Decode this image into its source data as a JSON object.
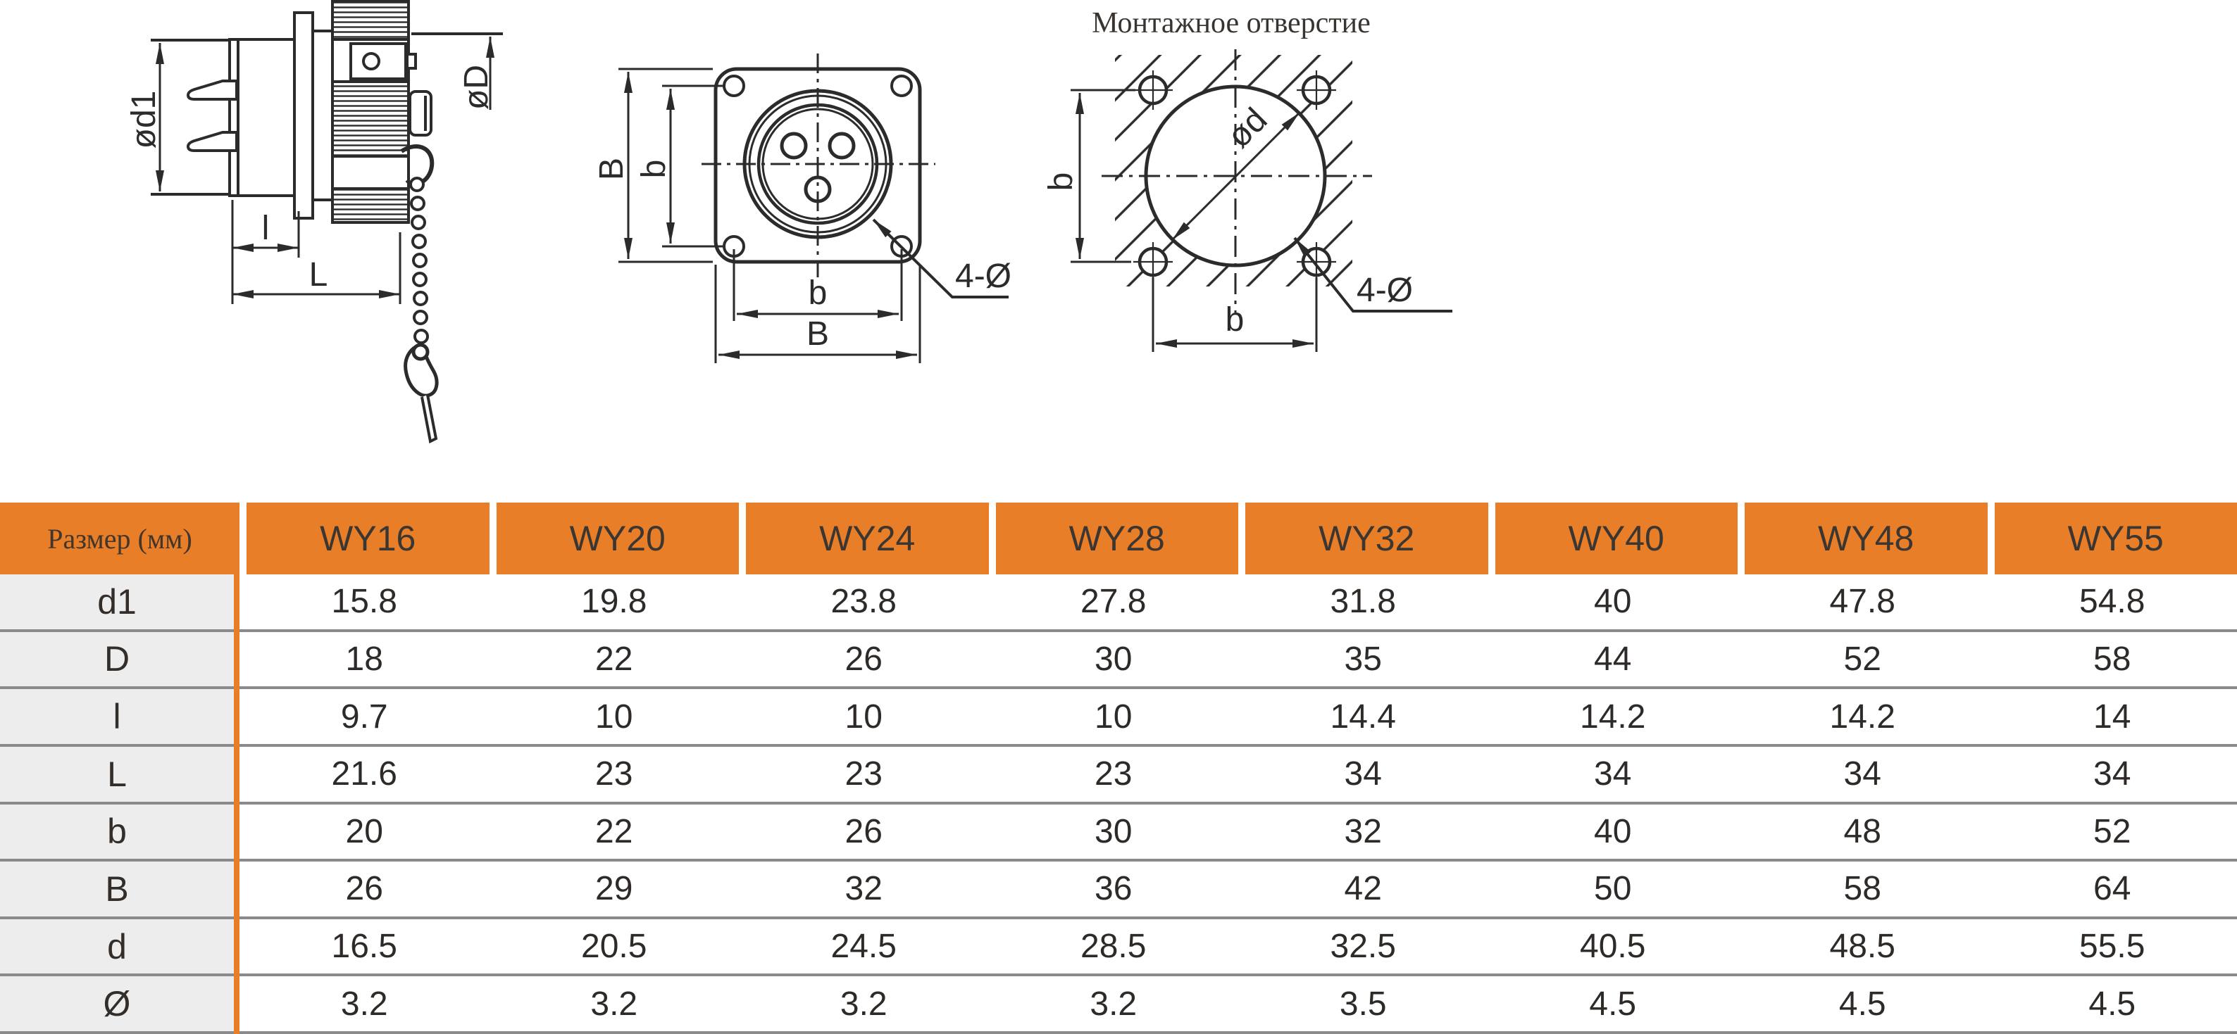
{
  "colors": {
    "accent": "#E97E28",
    "row_bg": "#EDEDED",
    "grid_line": "#8A8A8A",
    "ink": "#2E2A27",
    "draw": "#2B2B2B"
  },
  "drawings": {
    "side_view": {
      "labels": {
        "od1": "ød1",
        "oD": "øD",
        "l": "l",
        "L": "L"
      }
    },
    "front_view": {
      "labels": {
        "B_left": "B",
        "b_left": "b",
        "b_bottom": "b",
        "B_bottom": "B",
        "holes_note": "4-Ø"
      }
    },
    "mounting_hole": {
      "title": "Монтажное отверстие",
      "labels": {
        "b_left": "b",
        "od": "ød",
        "b_bottom": "b",
        "holes_note": "4-Ø"
      }
    }
  },
  "table": {
    "size_label": "Размер (мм)",
    "columns": [
      "WY16",
      "WY20",
      "WY24",
      "WY28",
      "WY32",
      "WY40",
      "WY48",
      "WY55"
    ],
    "rows": [
      {
        "label": "d1",
        "values": [
          "15.8",
          "19.8",
          "23.8",
          "27.8",
          "31.8",
          "40",
          "47.8",
          "54.8"
        ]
      },
      {
        "label": "D",
        "values": [
          "18",
          "22",
          "26",
          "30",
          "35",
          "44",
          "52",
          "58"
        ]
      },
      {
        "label": "l",
        "values": [
          "9.7",
          "10",
          "10",
          "10",
          "14.4",
          "14.2",
          "14.2",
          "14"
        ]
      },
      {
        "label": "L",
        "values": [
          "21.6",
          "23",
          "23",
          "23",
          "34",
          "34",
          "34",
          "34"
        ]
      },
      {
        "label": "b",
        "values": [
          "20",
          "22",
          "26",
          "30",
          "32",
          "40",
          "48",
          "52"
        ]
      },
      {
        "label": "B",
        "values": [
          "26",
          "29",
          "32",
          "36",
          "42",
          "50",
          "58",
          "64"
        ]
      },
      {
        "label": "d",
        "values": [
          "16.5",
          "20.5",
          "24.5",
          "28.5",
          "32.5",
          "40.5",
          "48.5",
          "55.5"
        ]
      },
      {
        "label": "Ø",
        "values": [
          "3.2",
          "3.2",
          "3.2",
          "3.2",
          "3.5",
          "4.5",
          "4.5",
          "4.5"
        ]
      }
    ]
  }
}
